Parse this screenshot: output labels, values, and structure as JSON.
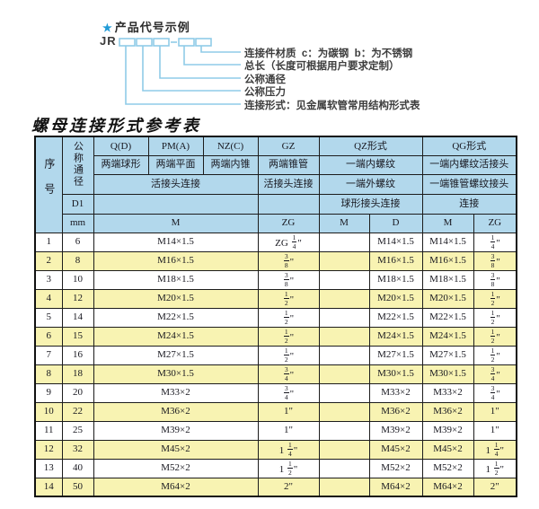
{
  "diagram": {
    "star": "★",
    "title": "产品代号示例",
    "code_prefix": "JR",
    "box_count": 5,
    "labels": [
      "连接件材质  c：为碳钢  b：为不锈钢",
      "总长（长度可根据用户要求定制）",
      "公称通径",
      "公称压力",
      "连接形式：见金属软管常用结构形式表"
    ]
  },
  "table": {
    "title": "螺母连接形式参考表",
    "header": {
      "seq": "序号",
      "dn": "公称通径",
      "d1": "D1",
      "unit": "mm",
      "groups": [
        "Q(D)",
        "PM(A)",
        "NZ(C)",
        "GZ",
        "QZ形式",
        "QG形式"
      ],
      "forms": [
        "两端球形",
        "两端平面",
        "两端内锥",
        "两端锥管",
        "一端内螺纹",
        "一端内螺纹活接头"
      ],
      "connections": [
        "活接头连接",
        "活接头连接",
        "一端外螺纹",
        "一端锥管螺纹接头"
      ],
      "sub_connections": [
        "球形接头连接",
        "连接"
      ],
      "units": [
        "M",
        "ZG",
        "M",
        "D",
        "M",
        "ZG"
      ]
    },
    "rows": [
      {
        "seq": "1",
        "dn": "6",
        "m": "M14×1.5",
        "gz": "ZG 1/4\"",
        "qz_m": "",
        "qz_d": "M14×1.5",
        "qg_m": "M14×1.5",
        "qg_zg": "1/4\""
      },
      {
        "seq": "2",
        "dn": "8",
        "m": "M16×1.5",
        "gz": "3/8\"",
        "qz_m": "",
        "qz_d": "M16×1.5",
        "qg_m": "M16×1.5",
        "qg_zg": "3/8\""
      },
      {
        "seq": "3",
        "dn": "10",
        "m": "M18×1.5",
        "gz": "3/8\"",
        "qz_m": "",
        "qz_d": "M18×1.5",
        "qg_m": "M18×1.5",
        "qg_zg": "3/8\""
      },
      {
        "seq": "4",
        "dn": "12",
        "m": "M20×1.5",
        "gz": "1/2\"",
        "qz_m": "",
        "qz_d": "M20×1.5",
        "qg_m": "M20×1.5",
        "qg_zg": "1/2\""
      },
      {
        "seq": "5",
        "dn": "14",
        "m": "M22×1.5",
        "gz": "1/2\"",
        "qz_m": "",
        "qz_d": "M22×1.5",
        "qg_m": "M22×1.5",
        "qg_zg": "1/2\""
      },
      {
        "seq": "6",
        "dn": "15",
        "m": "M24×1.5",
        "gz": "1/2\"",
        "qz_m": "",
        "qz_d": "M24×1.5",
        "qg_m": "M24×1.5",
        "qg_zg": "1/2\""
      },
      {
        "seq": "7",
        "dn": "16",
        "m": "M27×1.5",
        "gz": "1/2\"",
        "qz_m": "",
        "qz_d": "M27×1.5",
        "qg_m": "M27×1.5",
        "qg_zg": "1/2\""
      },
      {
        "seq": "8",
        "dn": "18",
        "m": "M30×1.5",
        "gz": "3/4\"",
        "qz_m": "",
        "qz_d": "M30×1.5",
        "qg_m": "M30×1.5",
        "qg_zg": "3/4\""
      },
      {
        "seq": "9",
        "dn": "20",
        "m": "M33×2",
        "gz": "3/4\"",
        "qz_m": "",
        "qz_d": "M33×2",
        "qg_m": "M33×2",
        "qg_zg": "3/4\""
      },
      {
        "seq": "10",
        "dn": "22",
        "m": "M36×2",
        "gz": "1\"",
        "qz_m": "",
        "qz_d": "M36×2",
        "qg_m": "M36×2",
        "qg_zg": "1\""
      },
      {
        "seq": "11",
        "dn": "25",
        "m": "M39×2",
        "gz": "1\"",
        "qz_m": "",
        "qz_d": "M39×2",
        "qg_m": "M39×2",
        "qg_zg": "1\""
      },
      {
        "seq": "12",
        "dn": "32",
        "m": "M45×2",
        "gz": "1 1/4\"",
        "qz_m": "",
        "qz_d": "M45×2",
        "qg_m": "M45×2",
        "qg_zg": "1 1/4\""
      },
      {
        "seq": "13",
        "dn": "40",
        "m": "M52×2",
        "gz": "1 1/2\"",
        "qz_m": "",
        "qz_d": "M52×2",
        "qg_m": "M52×2",
        "qg_zg": "1 1/2\""
      },
      {
        "seq": "14",
        "dn": "50",
        "m": "M64×2",
        "gz": "2\"",
        "qz_m": "",
        "qz_d": "M64×2",
        "qg_m": "M64×2",
        "qg_zg": "2\""
      }
    ]
  },
  "colors": {
    "header_bg": "#b2d8ec",
    "row_alt_bg": "#f8f3b2",
    "accent_blue": "#1f9ad6",
    "line_blue": "#8fcbe8",
    "border": "#1c1c1c"
  }
}
